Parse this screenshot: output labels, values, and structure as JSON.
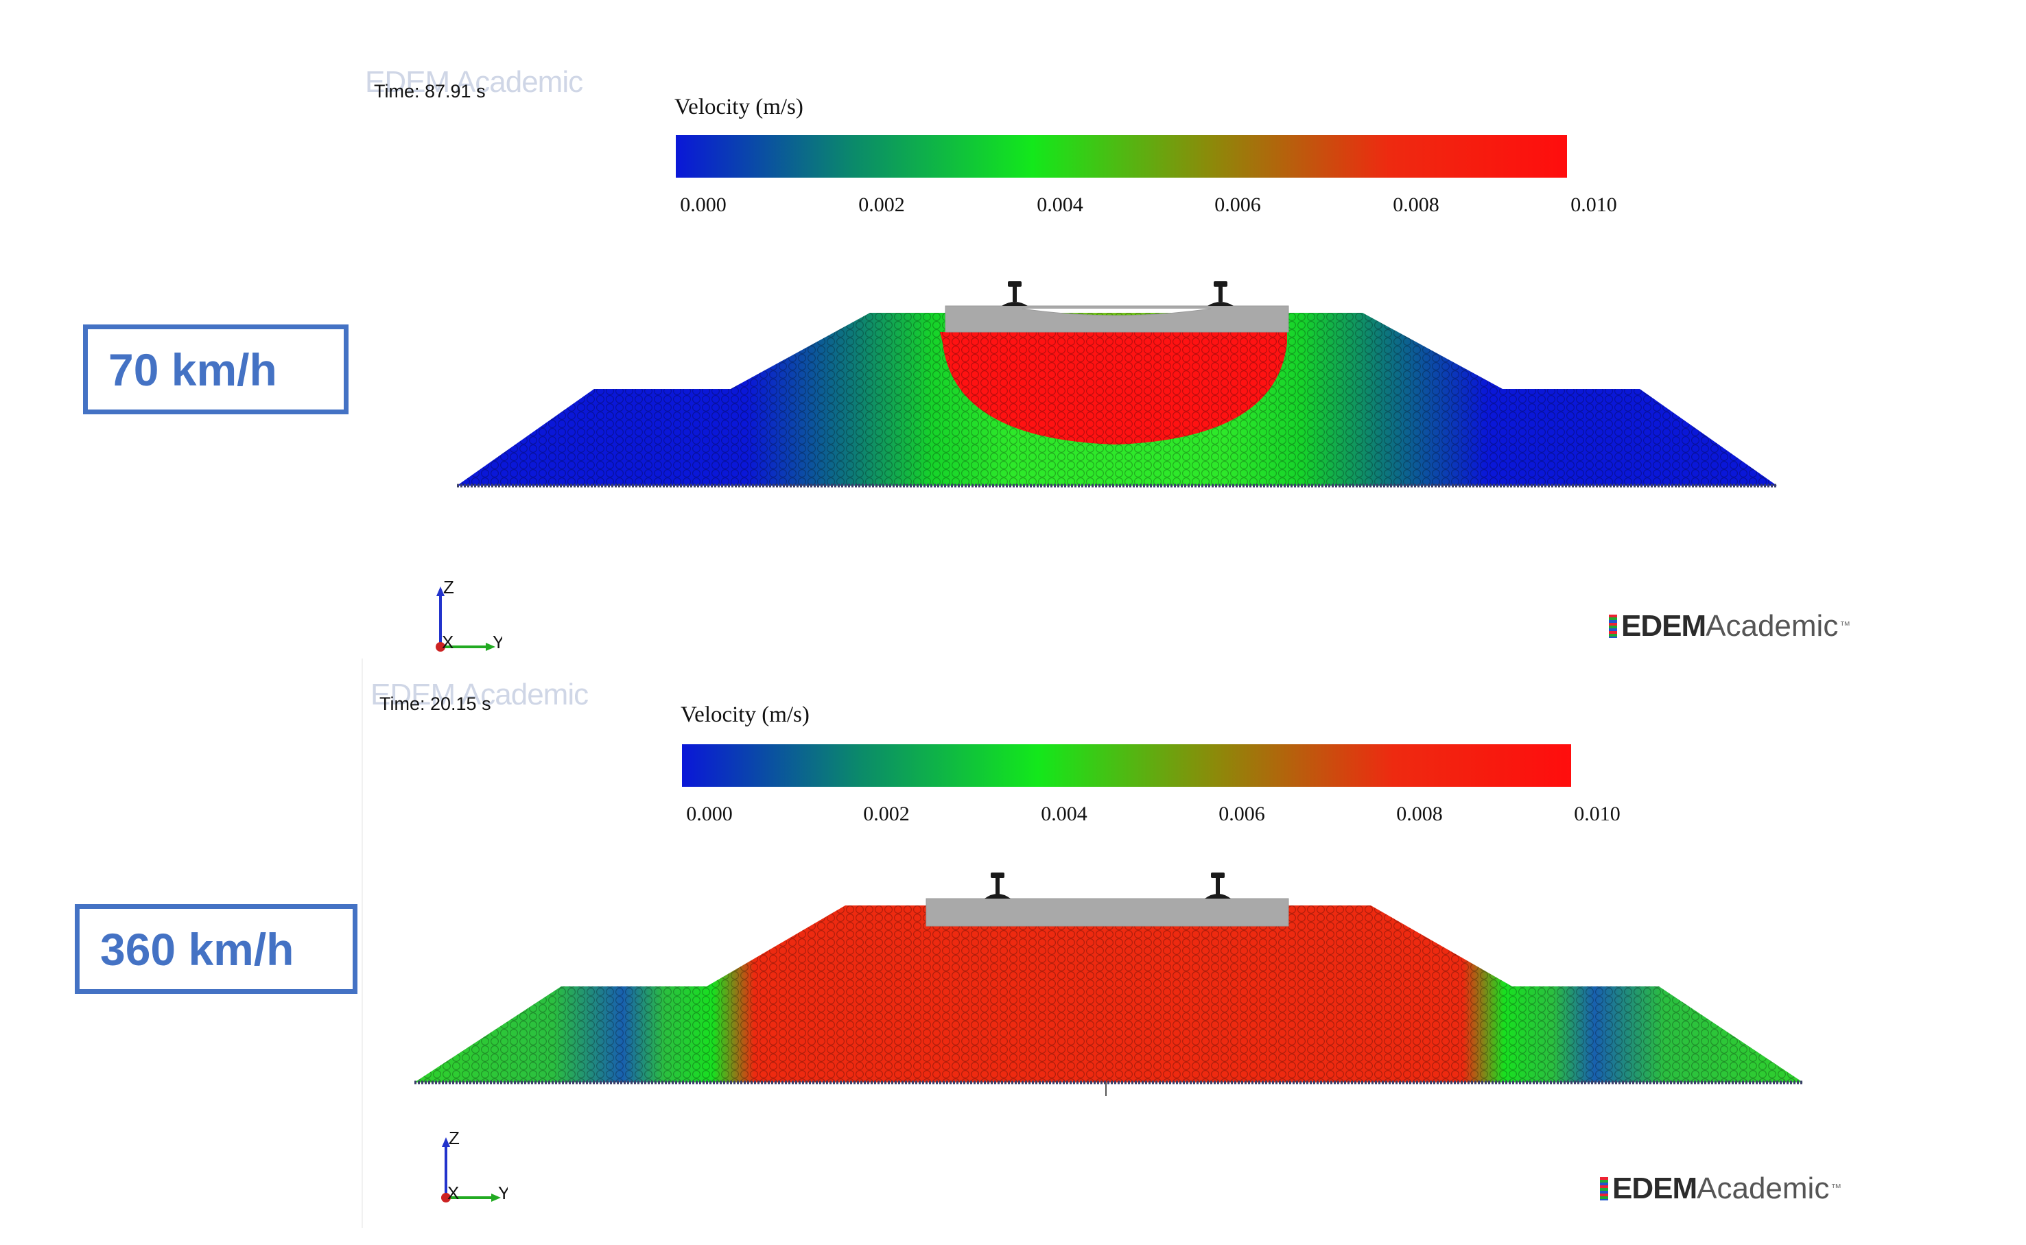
{
  "panels": [
    {
      "speed_label": "70 km/h",
      "time_text": "Time: 87.91 s",
      "watermark_ghost": "EDEM Academic",
      "velocity_title": "Velocity (m/s)",
      "colorbar_ticks": [
        "0.000",
        "0.002",
        "0.004",
        "0.006",
        "0.008",
        "0.010"
      ],
      "axis_labels": {
        "z": "Z",
        "x": "X",
        "y": "Y"
      },
      "logo": {
        "strong": "EDEM",
        "light": "Academic",
        "tm": "™"
      }
    },
    {
      "speed_label": "360 km/h",
      "time_text": "Time: 20.15 s",
      "watermark_ghost": "EDEM Academic",
      "velocity_title": "Velocity (m/s)",
      "colorbar_ticks": [
        "0.000",
        "0.002",
        "0.004",
        "0.006",
        "0.008",
        "0.010"
      ],
      "axis_labels": {
        "z": "Z",
        "x": "X",
        "y": "Y"
      },
      "logo": {
        "strong": "EDEM",
        "light": "Academic",
        "tm": "™"
      }
    }
  ],
  "colorbar": {
    "min": 0.0,
    "max": 0.01,
    "colors": [
      "#0a17d8",
      "#0b8a6a",
      "#13e81b",
      "#8c8a0a",
      "#ee2a10",
      "#ff0d0d"
    ]
  },
  "colors": {
    "box_border": "#4472c4",
    "sleeper": "#a9a9a9",
    "rail": "#1a1a1a"
  }
}
